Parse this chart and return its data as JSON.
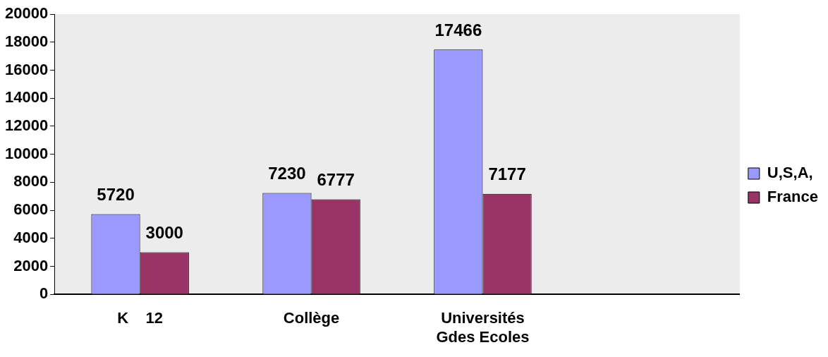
{
  "chart_data": {
    "type": "bar",
    "categories": [
      "K    12",
      "Collège",
      "Universités\nGdes Ecoles",
      null
    ],
    "series": [
      {
        "name": "U,S,A,",
        "color": "#9999ff",
        "values": [
          5720,
          7230,
          17466,
          null
        ]
      },
      {
        "name": "France",
        "color": "#993366",
        "values": [
          3000,
          6777,
          7177,
          null
        ]
      }
    ],
    "ylim": [
      0,
      20000
    ],
    "yticks": [
      0,
      2000,
      4000,
      6000,
      8000,
      10000,
      12000,
      14000,
      16000,
      18000,
      20000
    ],
    "grid": false,
    "legend": "right",
    "data_labels": true
  }
}
